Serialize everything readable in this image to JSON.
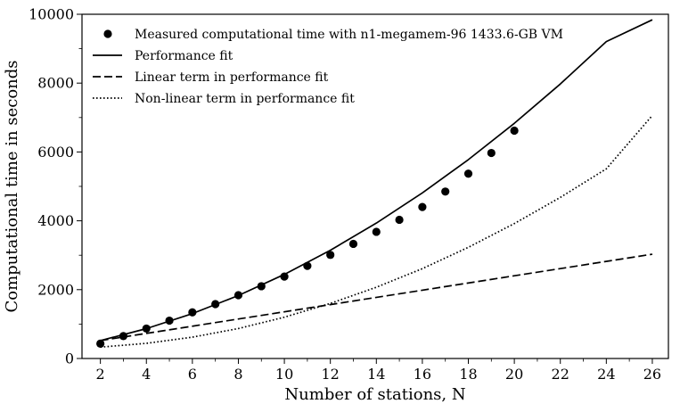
{
  "chart_data": {
    "type": "line",
    "title": "",
    "xlabel": "Number of stations, N",
    "ylabel": "Computational time in seconds",
    "xlim": [
      1.2,
      26.7
    ],
    "ylim": [
      0,
      10000
    ],
    "xticks": [
      2,
      4,
      6,
      8,
      10,
      12,
      14,
      16,
      18,
      20,
      22,
      24,
      26
    ],
    "yticks": [
      0,
      2000,
      4000,
      6000,
      8000,
      10000
    ],
    "grid": false,
    "legend_position": "top-left",
    "series": [
      {
        "name": "Measured computational time with n1-megamem-96 1433.6-GB VM",
        "kind": "scatter",
        "marker": "circle",
        "color": "#000000",
        "x": [
          2,
          3,
          4,
          5,
          6,
          7,
          8,
          9,
          10,
          11,
          12,
          13,
          14,
          15,
          16,
          17,
          18,
          19,
          20
        ],
        "y": [
          430,
          650,
          870,
          1100,
          1340,
          1580,
          1840,
          2100,
          2380,
          2690,
          3010,
          3330,
          3680,
          4030,
          4400,
          4850,
          5370,
          5970,
          6620
        ]
      },
      {
        "name": "Performance fit",
        "kind": "line",
        "dash": "solid",
        "color": "#000000",
        "x": [
          2,
          4,
          6,
          8,
          10,
          12,
          14,
          16,
          18,
          20,
          22,
          24,
          26
        ],
        "y": [
          520,
          868,
          1305,
          1830,
          2443,
          3144,
          3934,
          4811,
          5777,
          6832,
          7975,
          9206,
          9840
        ]
      },
      {
        "name": "Linear term in performance fit",
        "kind": "line",
        "dash": "dashed",
        "color": "#000000",
        "x": [
          2,
          26
        ],
        "y": [
          520,
          3030
        ]
      },
      {
        "name": "Non-linear term in performance fit",
        "kind": "line",
        "dash": "dotted",
        "color": "#000000",
        "x": [
          2,
          4,
          6,
          8,
          10,
          12,
          14,
          16,
          18,
          20,
          22,
          24,
          26
        ],
        "y": [
          330,
          440,
          620,
          870,
          1200,
          1600,
          2070,
          2610,
          3230,
          3920,
          4680,
          5510,
          7060
        ]
      }
    ]
  }
}
